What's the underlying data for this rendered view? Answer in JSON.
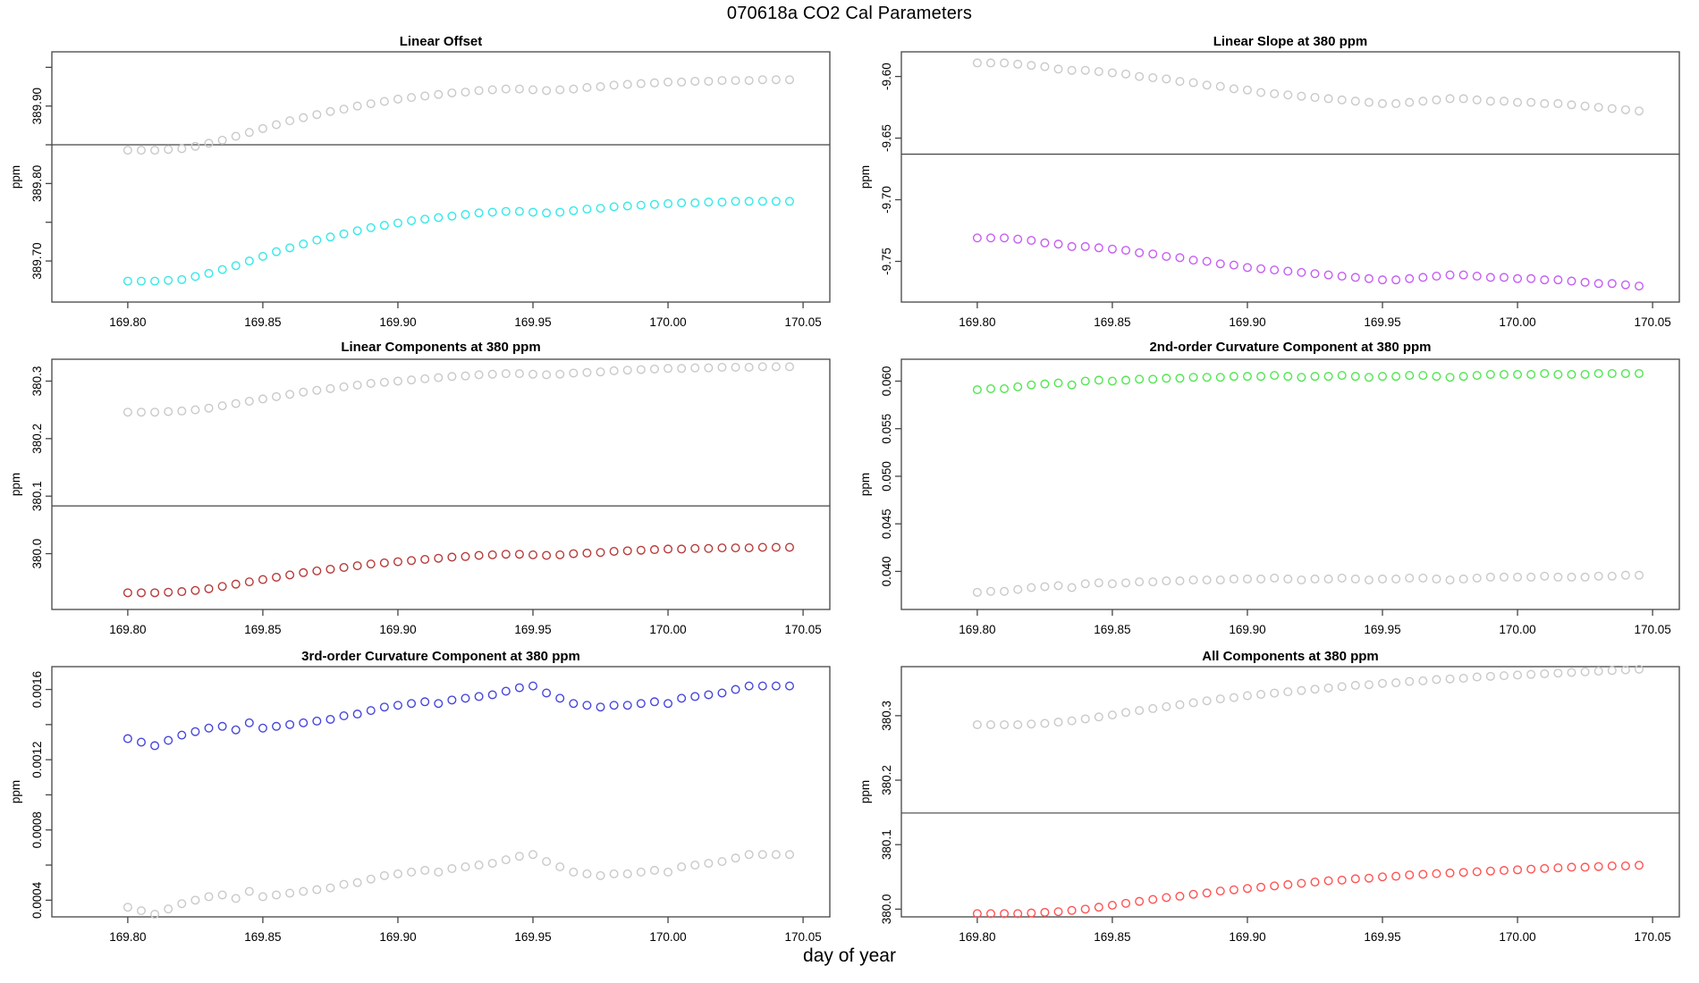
{
  "figure": {
    "title": "070618a   CO2 Cal Parameters",
    "xlabel": "day of year",
    "background": "#ffffff",
    "axis_color": "#454545",
    "text_color": "#000000"
  },
  "x": [
    169.8,
    169.805,
    169.81,
    169.815,
    169.82,
    169.825,
    169.83,
    169.835,
    169.84,
    169.845,
    169.85,
    169.855,
    169.86,
    169.865,
    169.87,
    169.875,
    169.88,
    169.885,
    169.89,
    169.895,
    169.9,
    169.905,
    169.91,
    169.915,
    169.92,
    169.925,
    169.93,
    169.935,
    169.94,
    169.945,
    169.95,
    169.955,
    169.96,
    169.965,
    169.97,
    169.975,
    169.98,
    169.985,
    169.99,
    169.995,
    170.0,
    170.005,
    170.01,
    170.015,
    170.02,
    170.025,
    170.03,
    170.035,
    170.04,
    170.045
  ],
  "chart_data": [
    {
      "type": "scatter",
      "title": "Linear Offset",
      "ylabel": "ppm",
      "xlabel": "",
      "xlim": [
        169.7719,
        170.0599
      ],
      "ylim": [
        389.647,
        389.97
      ],
      "xticks": [
        169.8,
        169.85,
        169.9,
        169.95,
        170.0,
        170.05
      ],
      "xtick_labels": [
        "169.80",
        "169.85",
        "169.90",
        "169.95",
        "170.00",
        "170.05"
      ],
      "yticks": [
        389.7,
        389.75,
        389.8,
        389.85,
        389.9,
        389.95
      ],
      "ytick_labels": [
        "389.70",
        "",
        "389.80",
        "",
        "389.90",
        ""
      ],
      "grid": false,
      "legend": null,
      "hline": 389.85,
      "series": [
        {
          "name": "upper-gray",
          "color": "#c9c9c9",
          "values": [
            389.843,
            389.843,
            389.843,
            389.844,
            389.845,
            389.848,
            389.852,
            389.856,
            389.861,
            389.866,
            389.871,
            389.876,
            389.881,
            389.885,
            389.889,
            389.893,
            389.896,
            389.9,
            389.903,
            389.906,
            389.909,
            389.911,
            389.913,
            389.915,
            389.917,
            389.918,
            389.92,
            389.921,
            389.922,
            389.922,
            389.921,
            389.92,
            389.921,
            389.922,
            389.924,
            389.925,
            389.927,
            389.928,
            389.929,
            389.93,
            389.931,
            389.931,
            389.932,
            389.932,
            389.933,
            389.933,
            389.933,
            389.934,
            389.934,
            389.934
          ]
        },
        {
          "name": "lower-cyan",
          "color": "#35e8e8",
          "values": [
            389.674,
            389.674,
            389.674,
            389.675,
            389.676,
            389.68,
            389.684,
            389.689,
            389.694,
            389.7,
            389.706,
            389.712,
            389.717,
            389.722,
            389.727,
            389.731,
            389.735,
            389.739,
            389.743,
            389.746,
            389.749,
            389.752,
            389.754,
            389.756,
            389.758,
            389.76,
            389.762,
            389.763,
            389.764,
            389.764,
            389.763,
            389.762,
            389.763,
            389.765,
            389.767,
            389.768,
            389.77,
            389.771,
            389.772,
            389.773,
            389.774,
            389.775,
            389.775,
            389.776,
            389.776,
            389.777,
            389.777,
            389.777,
            389.777,
            389.777
          ]
        }
      ]
    },
    {
      "type": "scatter",
      "title": "Linear Slope at 380 ppm",
      "ylabel": "ppm",
      "xlabel": "",
      "xlim": [
        169.7719,
        170.0599
      ],
      "ylim": [
        -9.783,
        -9.58
      ],
      "xticks": [
        169.8,
        169.85,
        169.9,
        169.95,
        170.0,
        170.05
      ],
      "xtick_labels": [
        "169.80",
        "169.85",
        "169.90",
        "169.95",
        "170.00",
        "170.05"
      ],
      "yticks": [
        -9.6,
        -9.65,
        -9.7,
        -9.75
      ],
      "ytick_labels": [
        "-9.60",
        "-9.65",
        "-9.70",
        "-9.75"
      ],
      "grid": false,
      "legend": null,
      "hline": -9.663,
      "series": [
        {
          "name": "upper-gray",
          "color": "#c9c9c9",
          "values": [
            -9.589,
            -9.589,
            -9.589,
            -9.59,
            -9.591,
            -9.592,
            -9.594,
            -9.595,
            -9.595,
            -9.596,
            -9.597,
            -9.598,
            -9.6,
            -9.601,
            -9.602,
            -9.604,
            -9.605,
            -9.607,
            -9.608,
            -9.61,
            -9.611,
            -9.613,
            -9.614,
            -9.615,
            -9.616,
            -9.617,
            -9.618,
            -9.619,
            -9.62,
            -9.621,
            -9.622,
            -9.622,
            -9.621,
            -9.62,
            -9.619,
            -9.618,
            -9.618,
            -9.619,
            -9.62,
            -9.62,
            -9.621,
            -9.621,
            -9.622,
            -9.622,
            -9.623,
            -9.624,
            -9.625,
            -9.626,
            -9.627,
            -9.628
          ]
        },
        {
          "name": "lower-violet",
          "color": "#c45ef2",
          "values": [
            -9.731,
            -9.731,
            -9.731,
            -9.732,
            -9.733,
            -9.735,
            -9.736,
            -9.738,
            -9.738,
            -9.739,
            -9.74,
            -9.741,
            -9.743,
            -9.744,
            -9.746,
            -9.747,
            -9.749,
            -9.75,
            -9.752,
            -9.753,
            -9.755,
            -9.756,
            -9.757,
            -9.758,
            -9.759,
            -9.76,
            -9.761,
            -9.762,
            -9.763,
            -9.764,
            -9.765,
            -9.765,
            -9.764,
            -9.763,
            -9.762,
            -9.761,
            -9.761,
            -9.762,
            -9.763,
            -9.763,
            -9.764,
            -9.764,
            -9.765,
            -9.765,
            -9.766,
            -9.767,
            -9.768,
            -9.768,
            -9.769,
            -9.77
          ]
        }
      ]
    },
    {
      "type": "scatter",
      "title": "Linear Components at 380 ppm",
      "ylabel": "ppm",
      "xlabel": "",
      "xlim": [
        169.7719,
        170.0599
      ],
      "ylim": [
        379.903,
        380.338
      ],
      "xticks": [
        169.8,
        169.85,
        169.9,
        169.95,
        170.0,
        170.05
      ],
      "xtick_labels": [
        "169.80",
        "169.85",
        "169.90",
        "169.95",
        "170.00",
        "170.05"
      ],
      "yticks": [
        380.0,
        380.1,
        380.2,
        380.3
      ],
      "ytick_labels": [
        "380.0",
        "380.1",
        "380.2",
        "380.3"
      ],
      "grid": false,
      "legend": null,
      "hline": 380.083,
      "series": [
        {
          "name": "upper-gray",
          "color": "#c9c9c9",
          "values": [
            380.246,
            380.246,
            380.246,
            380.247,
            380.248,
            380.25,
            380.253,
            380.257,
            380.261,
            380.265,
            380.269,
            380.273,
            380.277,
            380.281,
            380.284,
            380.287,
            380.29,
            380.293,
            380.296,
            380.298,
            380.3,
            380.302,
            380.304,
            380.306,
            380.308,
            380.309,
            380.311,
            380.312,
            380.313,
            380.313,
            380.312,
            380.311,
            380.312,
            380.314,
            380.315,
            380.316,
            380.318,
            380.319,
            380.32,
            380.321,
            380.322,
            380.322,
            380.323,
            380.323,
            380.324,
            380.324,
            380.324,
            380.325,
            380.325,
            380.325
          ]
        },
        {
          "name": "lower-darkred",
          "color": "#b73a3a",
          "values": [
            379.932,
            379.932,
            379.932,
            379.933,
            379.934,
            379.936,
            379.939,
            379.943,
            379.947,
            379.951,
            379.955,
            379.959,
            379.963,
            379.967,
            379.97,
            379.973,
            379.976,
            379.979,
            379.982,
            379.984,
            379.986,
            379.988,
            379.99,
            379.992,
            379.994,
            379.995,
            379.997,
            379.998,
            379.999,
            379.999,
            379.998,
            379.997,
            379.998,
            380.0,
            380.001,
            380.002,
            380.004,
            380.005,
            380.006,
            380.007,
            380.008,
            380.008,
            380.009,
            380.009,
            380.01,
            380.01,
            380.01,
            380.011,
            380.011,
            380.011
          ]
        }
      ]
    },
    {
      "type": "scatter",
      "title": "2nd-order Curvature Component at 380 ppm",
      "ylabel": "ppm",
      "xlabel": "",
      "xlim": [
        169.7719,
        170.0599
      ],
      "ylim": [
        0.036,
        0.0623
      ],
      "xticks": [
        169.8,
        169.85,
        169.9,
        169.95,
        170.0,
        170.05
      ],
      "xtick_labels": [
        "169.80",
        "169.85",
        "169.90",
        "169.95",
        "170.00",
        "170.05"
      ],
      "yticks": [
        0.04,
        0.045,
        0.05,
        0.055,
        0.06
      ],
      "ytick_labels": [
        "0.040",
        "0.045",
        "0.050",
        "0.055",
        "0.060"
      ],
      "grid": false,
      "legend": null,
      "hline": null,
      "series": [
        {
          "name": "upper-green",
          "color": "#50e650",
          "values": [
            0.0591,
            0.0592,
            0.0592,
            0.0594,
            0.0596,
            0.0597,
            0.0598,
            0.0596,
            0.06,
            0.0601,
            0.06,
            0.0601,
            0.0602,
            0.0602,
            0.0603,
            0.0603,
            0.0604,
            0.0604,
            0.0604,
            0.0605,
            0.0605,
            0.0605,
            0.0606,
            0.0605,
            0.0604,
            0.0605,
            0.0605,
            0.0606,
            0.0605,
            0.0604,
            0.0605,
            0.0605,
            0.0606,
            0.0606,
            0.0605,
            0.0604,
            0.0605,
            0.0606,
            0.0607,
            0.0607,
            0.0607,
            0.0607,
            0.0608,
            0.0607,
            0.0607,
            0.0607,
            0.0608,
            0.0608,
            0.0608,
            0.0608
          ]
        },
        {
          "name": "lower-gray",
          "color": "#c9c9c9",
          "values": [
            0.0378,
            0.0379,
            0.0379,
            0.0381,
            0.0383,
            0.0384,
            0.0385,
            0.0383,
            0.0387,
            0.0388,
            0.0387,
            0.0388,
            0.0389,
            0.0389,
            0.039,
            0.039,
            0.0391,
            0.0391,
            0.0391,
            0.0392,
            0.0392,
            0.0392,
            0.0393,
            0.0392,
            0.0391,
            0.0392,
            0.0392,
            0.0393,
            0.0392,
            0.0391,
            0.0392,
            0.0392,
            0.0393,
            0.0393,
            0.0392,
            0.0391,
            0.0392,
            0.0393,
            0.0394,
            0.0394,
            0.0394,
            0.0394,
            0.0395,
            0.0394,
            0.0394,
            0.0394,
            0.0395,
            0.0395,
            0.0396,
            0.0396
          ]
        }
      ]
    },
    {
      "type": "scatter",
      "title": "3rd-order Curvature Component at 380 ppm",
      "ylabel": "ppm",
      "xlabel": "",
      "xlim": [
        169.7719,
        170.0599
      ],
      "ylim": [
        0.000305,
        0.00173
      ],
      "xticks": [
        169.8,
        169.85,
        169.9,
        169.95,
        170.0,
        170.05
      ],
      "xtick_labels": [
        "169.80",
        "169.85",
        "169.90",
        "169.95",
        "170.00",
        "170.05"
      ],
      "yticks": [
        0.0004,
        0.0006,
        0.0008,
        0.001,
        0.0012,
        0.0014,
        0.0016
      ],
      "ytick_labels": [
        "0.0004",
        "",
        "0.0008",
        "",
        "0.0012",
        "",
        "0.0016"
      ],
      "grid": false,
      "legend": null,
      "hline": null,
      "series": [
        {
          "name": "upper-blue",
          "color": "#4646dd",
          "values": [
            0.00132,
            0.0013,
            0.00128,
            0.00131,
            0.00134,
            0.00136,
            0.00138,
            0.00139,
            0.00137,
            0.00141,
            0.00138,
            0.00139,
            0.0014,
            0.00141,
            0.00142,
            0.00143,
            0.00145,
            0.00146,
            0.00148,
            0.0015,
            0.00151,
            0.00152,
            0.00153,
            0.00152,
            0.00154,
            0.00155,
            0.00156,
            0.00157,
            0.00159,
            0.00161,
            0.00162,
            0.00158,
            0.00155,
            0.00152,
            0.00151,
            0.0015,
            0.00151,
            0.00151,
            0.00152,
            0.00153,
            0.00152,
            0.00155,
            0.00156,
            0.00157,
            0.00158,
            0.0016,
            0.00162,
            0.00162,
            0.00162,
            0.00162
          ]
        },
        {
          "name": "lower-gray",
          "color": "#c9c9c9",
          "values": [
            0.00036,
            0.00034,
            0.00032,
            0.00035,
            0.00038,
            0.0004,
            0.00042,
            0.00043,
            0.00041,
            0.00045,
            0.00042,
            0.00043,
            0.00044,
            0.00045,
            0.00046,
            0.00047,
            0.00049,
            0.0005,
            0.00052,
            0.00054,
            0.00055,
            0.00056,
            0.00057,
            0.00056,
            0.00058,
            0.00059,
            0.0006,
            0.00061,
            0.00063,
            0.00065,
            0.00066,
            0.00062,
            0.00059,
            0.00056,
            0.00055,
            0.00054,
            0.00055,
            0.00055,
            0.00056,
            0.00057,
            0.00056,
            0.00059,
            0.0006,
            0.00061,
            0.00062,
            0.00064,
            0.00066,
            0.00066,
            0.00066,
            0.00066
          ]
        }
      ]
    },
    {
      "type": "scatter",
      "title": "All Components at 380 ppm",
      "ylabel": "ppm",
      "xlabel": "",
      "xlim": [
        169.7719,
        170.0599
      ],
      "ylim": [
        379.988,
        380.376
      ],
      "xticks": [
        169.8,
        169.85,
        169.9,
        169.95,
        170.0,
        170.05
      ],
      "xtick_labels": [
        "169.80",
        "169.85",
        "169.90",
        "169.95",
        "170.00",
        "170.05"
      ],
      "yticks": [
        380.0,
        380.1,
        380.2,
        380.3
      ],
      "ytick_labels": [
        "380.0",
        "380.1",
        "380.2",
        "380.3"
      ],
      "grid": false,
      "legend": null,
      "hline": 380.149,
      "series": [
        {
          "name": "upper-gray",
          "color": "#c9c9c9",
          "values": [
            380.286,
            380.286,
            380.286,
            380.286,
            380.287,
            380.288,
            380.29,
            380.292,
            380.295,
            380.298,
            380.301,
            380.305,
            380.308,
            380.311,
            380.314,
            380.317,
            380.32,
            380.323,
            380.326,
            380.328,
            380.331,
            380.333,
            380.335,
            380.337,
            380.339,
            380.341,
            380.343,
            380.345,
            380.347,
            380.348,
            380.35,
            380.351,
            380.353,
            380.354,
            380.356,
            380.357,
            380.358,
            380.36,
            380.361,
            380.362,
            380.363,
            380.364,
            380.365,
            380.366,
            380.367,
            380.368,
            380.369,
            380.37,
            380.371,
            380.372
          ]
        },
        {
          "name": "lower-red",
          "color": "#ff5252",
          "values": [
            379.993,
            379.993,
            379.993,
            379.993,
            379.994,
            379.995,
            379.996,
            379.998,
            380.0,
            380.003,
            380.006,
            380.009,
            380.012,
            380.015,
            380.018,
            380.02,
            380.023,
            380.025,
            380.028,
            380.03,
            380.032,
            380.034,
            380.036,
            380.038,
            380.04,
            380.042,
            380.044,
            380.045,
            380.047,
            380.048,
            380.05,
            380.051,
            380.053,
            380.054,
            380.055,
            380.056,
            380.057,
            380.058,
            380.059,
            380.06,
            380.061,
            380.062,
            380.063,
            380.064,
            380.065,
            380.065,
            380.066,
            380.067,
            380.067,
            380.068
          ]
        }
      ]
    }
  ]
}
